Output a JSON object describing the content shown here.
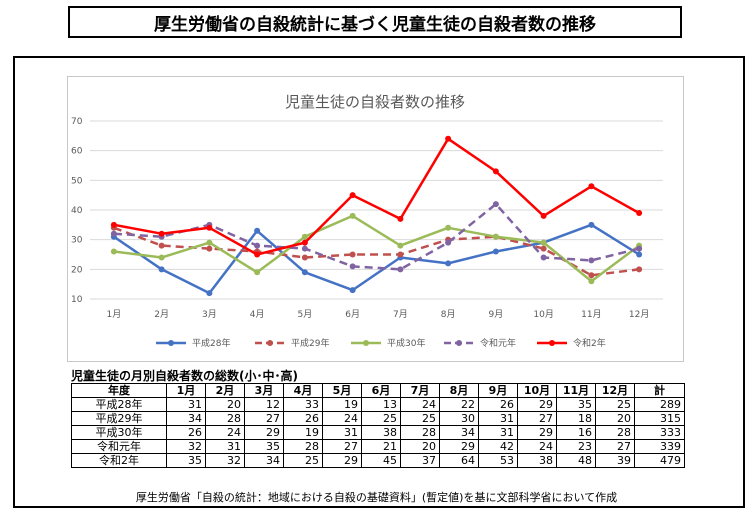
{
  "page_title": "厚生労働省の自殺統計に基づく児童生徒の自殺者数の推移",
  "chart_data": {
    "type": "line",
    "title": "児童生徒の自殺者数の推移",
    "categories": [
      "1月",
      "2月",
      "3月",
      "4月",
      "5月",
      "6月",
      "7月",
      "8月",
      "9月",
      "10月",
      "11月",
      "12月"
    ],
    "ylim": [
      10,
      70
    ],
    "yticks": [
      10,
      20,
      30,
      40,
      50,
      60,
      70
    ],
    "grid": true,
    "legend_position": "bottom",
    "series": [
      {
        "name": "平成28年",
        "color": "#4472c4",
        "dash": "solid",
        "width": 2.5,
        "values": [
          31,
          20,
          12,
          33,
          19,
          13,
          24,
          22,
          26,
          29,
          35,
          25
        ]
      },
      {
        "name": "平成29年",
        "color": "#c0504d",
        "dash": "dash",
        "width": 2.5,
        "values": [
          34,
          28,
          27,
          26,
          24,
          25,
          25,
          30,
          31,
          27,
          18,
          20
        ]
      },
      {
        "name": "平成30年",
        "color": "#9bbb59",
        "dash": "solid",
        "width": 2.5,
        "values": [
          26,
          24,
          29,
          19,
          31,
          38,
          28,
          34,
          31,
          29,
          16,
          28
        ]
      },
      {
        "name": "令和元年",
        "color": "#8064a2",
        "dash": "dash",
        "width": 2.5,
        "values": [
          32,
          31,
          35,
          28,
          27,
          21,
          20,
          29,
          42,
          24,
          23,
          27
        ]
      },
      {
        "name": "令和2年",
        "color": "#ff0000",
        "dash": "solid",
        "width": 2.5,
        "values": [
          35,
          32,
          34,
          25,
          29,
          45,
          37,
          64,
          53,
          38,
          48,
          39
        ]
      }
    ]
  },
  "table": {
    "caption": "児童生徒の月別自殺者数の総数(小･中･高)",
    "headers": [
      "年度",
      "1月",
      "2月",
      "3月",
      "4月",
      "5月",
      "6月",
      "7月",
      "8月",
      "9月",
      "10月",
      "11月",
      "12月",
      "計"
    ],
    "rows": [
      [
        "平成28年",
        "31",
        "20",
        "12",
        "33",
        "19",
        "13",
        "24",
        "22",
        "26",
        "29",
        "35",
        "25",
        "289"
      ],
      [
        "平成29年",
        "34",
        "28",
        "27",
        "26",
        "24",
        "25",
        "25",
        "30",
        "31",
        "27",
        "18",
        "20",
        "315"
      ],
      [
        "平成30年",
        "26",
        "24",
        "29",
        "19",
        "31",
        "38",
        "28",
        "34",
        "31",
        "29",
        "16",
        "28",
        "333"
      ],
      [
        "令和元年",
        "32",
        "31",
        "35",
        "28",
        "27",
        "21",
        "20",
        "29",
        "42",
        "24",
        "23",
        "27",
        "339"
      ],
      [
        "令和2年",
        "35",
        "32",
        "34",
        "25",
        "29",
        "45",
        "37",
        "64",
        "53",
        "38",
        "48",
        "39",
        "479"
      ]
    ]
  },
  "source_note": "厚生労働省「自殺の統計：地域における自殺の基礎資料」(暫定値)を基に文部科学省において作成"
}
